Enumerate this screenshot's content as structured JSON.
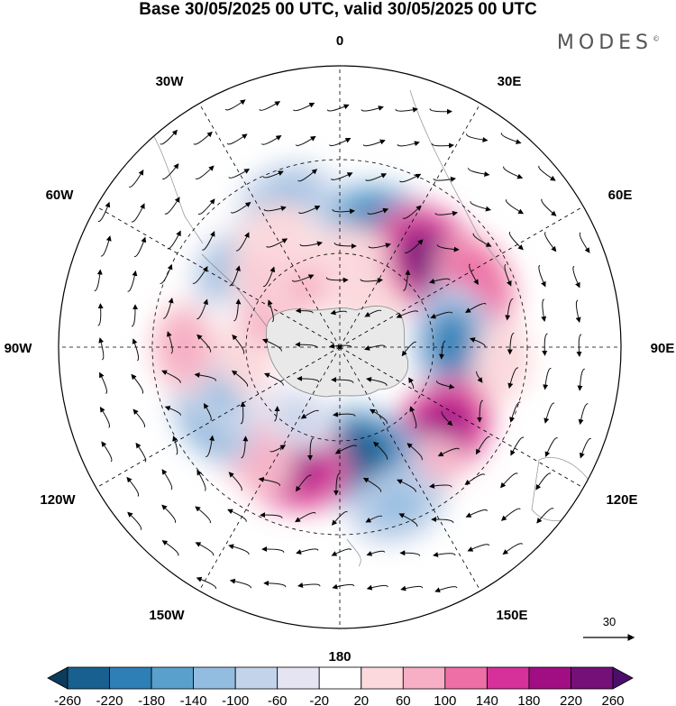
{
  "title": "Base 30/05/2025 00 UTC, valid 30/05/2025 00 UTC",
  "brand": "MODES",
  "brand_mark": "©",
  "projection": "south-polar-stereographic",
  "longitude_labels": {
    "top": "0",
    "top_right": "30E",
    "right_upper": "60E",
    "right": "90E",
    "right_lower": "120E",
    "bottom_right": "150E",
    "bottom": "180",
    "bottom_left": "150W",
    "left_lower": "120W",
    "left": "90W",
    "left_upper": "60W",
    "top_left": "30W"
  },
  "vector_reference": {
    "value": "30"
  },
  "colorbar": {
    "ticks": [
      "-260",
      "-220",
      "-180",
      "-140",
      "-100",
      "-60",
      "-20",
      "20",
      "60",
      "100",
      "140",
      "180",
      "220",
      "260"
    ],
    "colors": [
      "#0c3b5c",
      "#17608f",
      "#2e7fb6",
      "#5aa0cd",
      "#93bde0",
      "#c3d3ea",
      "#e4e4f2",
      "#ffffff",
      "#fbd9dc",
      "#f6afc4",
      "#ee6fa6",
      "#d6309a",
      "#a10e84",
      "#741078",
      "#4c0e6b"
    ]
  },
  "anomalies": [
    {
      "lat": -50,
      "lon": 20,
      "value": -200
    },
    {
      "lat": -50,
      "lon": 48,
      "value": 240
    },
    {
      "lat": -42,
      "lon": 65,
      "value": 140
    },
    {
      "lat": -54,
      "lon": 88,
      "value": -180
    },
    {
      "lat": -48,
      "lon": 130,
      "value": 200
    },
    {
      "lat": -42,
      "lon": 148,
      "value": 100
    },
    {
      "lat": -55,
      "lon": 175,
      "value": -240
    },
    {
      "lat": -36,
      "lon": 160,
      "value": -120
    },
    {
      "lat": -50,
      "lon": -155,
      "value": 220
    },
    {
      "lat": -46,
      "lon": -140,
      "value": 100
    },
    {
      "lat": -44,
      "lon": -118,
      "value": -140
    },
    {
      "lat": -50,
      "lon": -110,
      "value": -100
    },
    {
      "lat": -40,
      "lon": -90,
      "value": 100
    },
    {
      "lat": -60,
      "lon": -95,
      "value": 60
    },
    {
      "lat": -46,
      "lon": -55,
      "value": -100
    },
    {
      "lat": -54,
      "lon": -40,
      "value": 80
    },
    {
      "lat": -40,
      "lon": -20,
      "value": -120
    },
    {
      "lat": -48,
      "lon": -30,
      "value": 60
    },
    {
      "lat": -66,
      "lon": -60,
      "value": 100
    },
    {
      "lat": -68,
      "lon": -30,
      "value": 80
    },
    {
      "lat": -60,
      "lon": 5,
      "value": 60
    },
    {
      "lat": -72,
      "lon": 25,
      "value": 60
    },
    {
      "lat": -64,
      "lon": -150,
      "value": -60
    },
    {
      "lat": -38,
      "lon": 95,
      "value": 60
    }
  ]
}
